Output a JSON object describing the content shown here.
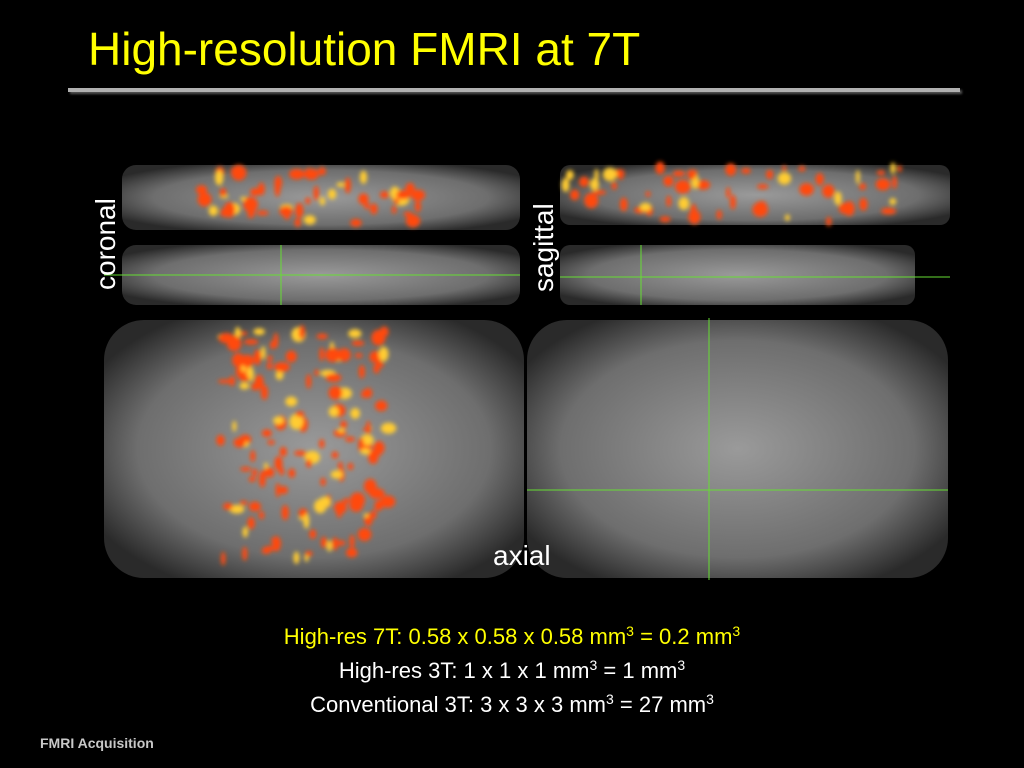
{
  "header": {
    "title": "High-resolution FMRI at 7T"
  },
  "figure": {
    "labels": {
      "coronal": "coronal",
      "sagittal": "sagittal",
      "axial": "axial"
    }
  },
  "caption": {
    "lines": [
      [
        {
          "text": "High-res 7T: 0.58 x 0.58 x 0.58 mm"
        },
        {
          "sup": "3"
        },
        {
          "text": " = 0.2 mm"
        },
        {
          "sup": "3"
        }
      ],
      [
        {
          "text": "High-res 3T: 1 x 1 x 1 mm"
        },
        {
          "sup": "3"
        },
        {
          "text": " = 1 mm"
        },
        {
          "sup": "3"
        }
      ],
      [
        {
          "text": "Conventional 3T: 3 x 3 x 3 mm"
        },
        {
          "sup": "3"
        },
        {
          "text": " = 27 mm"
        },
        {
          "sup": "3"
        }
      ]
    ]
  },
  "footer": {
    "text": "FMRI Acquisition"
  }
}
